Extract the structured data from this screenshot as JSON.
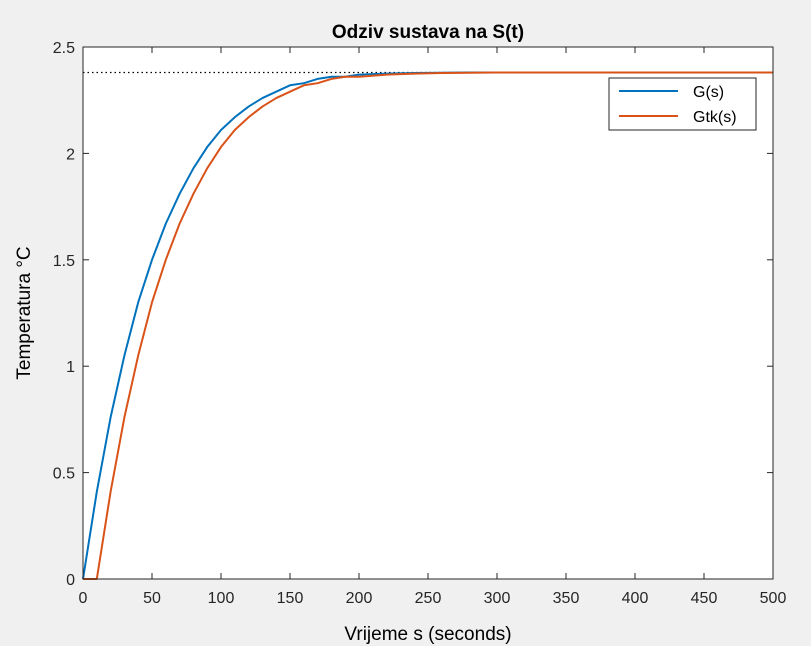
{
  "chart_data": {
    "type": "line",
    "title": "Odziv sustava na S(t)",
    "xlabel": "Vrijeme s (seconds)",
    "ylabel": "Temperatura °C",
    "xlim": [
      0,
      500
    ],
    "ylim": [
      0,
      2.5
    ],
    "xticks": [
      0,
      50,
      100,
      150,
      200,
      250,
      300,
      350,
      400,
      450,
      500
    ],
    "yticks": [
      0,
      0.5,
      1,
      1.5,
      2,
      2.5
    ],
    "xtick_labels": [
      "0",
      "50",
      "100",
      "150",
      "200",
      "250",
      "300",
      "350",
      "400",
      "450",
      "500"
    ],
    "ytick_labels": [
      "0",
      "0.5",
      "1",
      "1.5",
      "2",
      "2.5"
    ],
    "grid": false,
    "legend_position": "top-right",
    "reference_line": {
      "y": 2.38,
      "style": "dotted",
      "color": "#000000"
    },
    "series": [
      {
        "name": "G(s)",
        "color": "#0072bd",
        "x": [
          0,
          10,
          20,
          30,
          40,
          50,
          60,
          70,
          80,
          90,
          100,
          110,
          120,
          130,
          140,
          150,
          160,
          170,
          180,
          190,
          200,
          220,
          240,
          260,
          280,
          300,
          320,
          350,
          400,
          450,
          500
        ],
        "y": [
          0,
          0.41,
          0.76,
          1.05,
          1.3,
          1.5,
          1.67,
          1.81,
          1.93,
          2.03,
          2.11,
          2.17,
          2.22,
          2.26,
          2.29,
          2.32,
          2.33,
          2.35,
          2.36,
          2.36,
          2.37,
          2.375,
          2.378,
          2.379,
          2.38,
          2.38,
          2.38,
          2.38,
          2.38,
          2.38,
          2.38
        ]
      },
      {
        "name": "Gtk(s)",
        "color": "#d95319",
        "x": [
          0,
          10,
          20,
          30,
          40,
          50,
          60,
          70,
          80,
          90,
          100,
          110,
          120,
          130,
          140,
          150,
          160,
          170,
          180,
          190,
          200,
          220,
          240,
          260,
          280,
          300,
          320,
          350,
          400,
          450,
          500
        ],
        "y": [
          0,
          0,
          0.41,
          0.76,
          1.05,
          1.3,
          1.5,
          1.67,
          1.81,
          1.93,
          2.03,
          2.11,
          2.17,
          2.22,
          2.26,
          2.29,
          2.32,
          2.33,
          2.35,
          2.36,
          2.36,
          2.37,
          2.375,
          2.378,
          2.379,
          2.38,
          2.38,
          2.38,
          2.38,
          2.38,
          2.38
        ]
      }
    ]
  }
}
